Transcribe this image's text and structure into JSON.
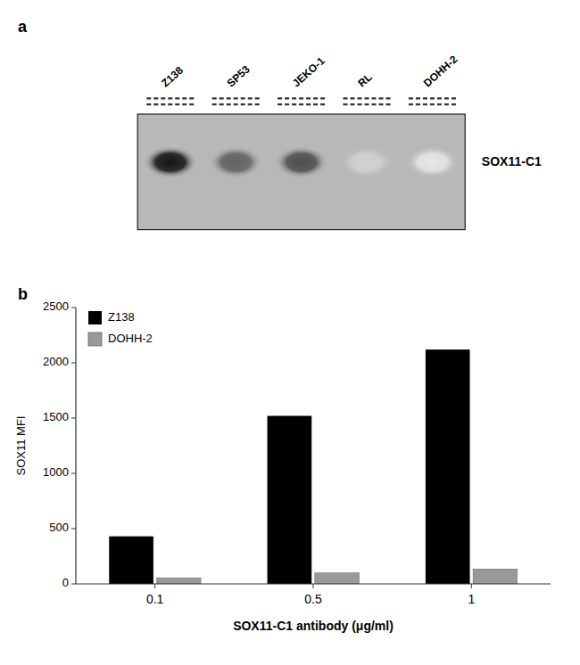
{
  "chart_data": [
    {
      "type": "blot",
      "title": "a",
      "categories": [
        "Z138",
        "SP53",
        "JEKO-1",
        "RL",
        "DOHH-2"
      ],
      "values": [
        0.08,
        0.38,
        0.3,
        0.82,
        0.9
      ],
      "annotation": "SOX11-C1",
      "tick_labels": "x"
    },
    {
      "type": "bar",
      "title": "b",
      "categories": [
        "0.1",
        "0.5",
        "1"
      ],
      "series": [
        {
          "name": "Z138",
          "color": "#000000",
          "values": [
            430,
            1520,
            2120
          ]
        },
        {
          "name": "DOHH-2",
          "color": "#999999",
          "values": [
            55,
            100,
            135
          ]
        }
      ],
      "xlabel": "SOX11-C1 antibody (μg/ml)",
      "ylabel": "SOX11 MFI",
      "ylim": [
        0,
        2500
      ],
      "yticks": [
        0,
        500,
        1000,
        1500,
        2000,
        2500
      ],
      "grid": false,
      "legend": "upper left"
    }
  ]
}
